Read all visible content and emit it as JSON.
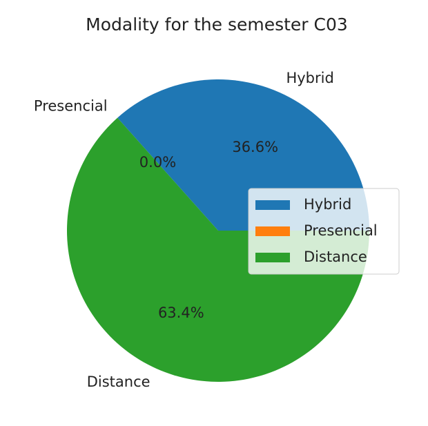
{
  "chart_data": {
    "type": "pie",
    "title": "Modality for the semester C03",
    "categories": [
      "Hybrid",
      "Presencial",
      "Distance"
    ],
    "values": [
      36.6,
      0.0,
      63.4
    ],
    "value_labels": [
      "36.6%",
      "0.0%",
      "63.4%"
    ],
    "colors": [
      "#1f77b4",
      "#ff7f0e",
      "#2ca02c"
    ],
    "legend": "center right"
  }
}
